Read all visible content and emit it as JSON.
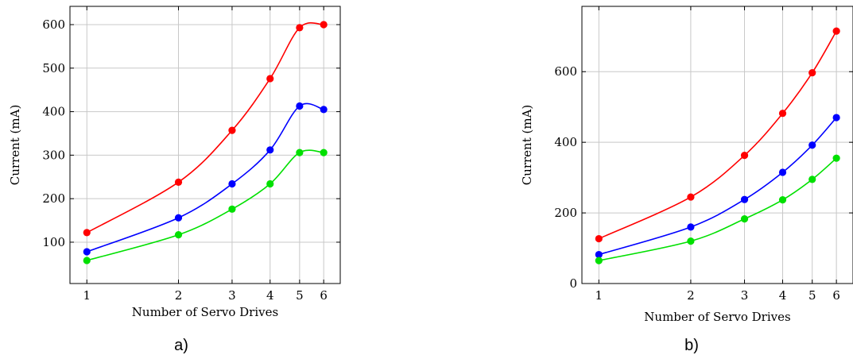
{
  "chart_data": [
    {
      "type": "line",
      "caption": "a)",
      "xlabel": "Number of Servo Drives",
      "ylabel": "Current (mA)",
      "x_scale": "log",
      "x": [
        1,
        2,
        3,
        4,
        5,
        6
      ],
      "x_ticks": [
        1,
        2,
        3,
        4,
        5,
        6
      ],
      "xlim": [
        0.88,
        6.8
      ],
      "y_ticks": [
        100,
        200,
        300,
        400,
        500,
        600
      ],
      "ylim": [
        5,
        642
      ],
      "grid": true,
      "series": [
        {
          "color": "#ff0000",
          "values": [
            122,
            238,
            357,
            476,
            593,
            600
          ]
        },
        {
          "color": "#0000ff",
          "values": [
            78,
            156,
            234,
            312,
            413,
            405
          ]
        },
        {
          "color": "#00e000",
          "values": [
            58,
            117,
            176,
            234,
            306,
            306
          ]
        }
      ]
    },
    {
      "type": "line",
      "caption": "b)",
      "xlabel": "Number of Servo Drives",
      "ylabel": "Current (mA)",
      "x_scale": "log",
      "x": [
        1,
        2,
        3,
        4,
        5,
        6
      ],
      "x_ticks": [
        1,
        2,
        3,
        4,
        5,
        6
      ],
      "xlim": [
        0.88,
        6.8
      ],
      "y_ticks": [
        0,
        200,
        400,
        600
      ],
      "ylim": [
        0,
        785
      ],
      "grid": true,
      "series": [
        {
          "color": "#ff0000",
          "values": [
            127,
            245,
            363,
            482,
            597,
            715
          ]
        },
        {
          "color": "#0000ff",
          "values": [
            82,
            160,
            238,
            315,
            392,
            470
          ]
        },
        {
          "color": "#00e000",
          "values": [
            65,
            120,
            183,
            237,
            295,
            355
          ]
        }
      ]
    }
  ]
}
